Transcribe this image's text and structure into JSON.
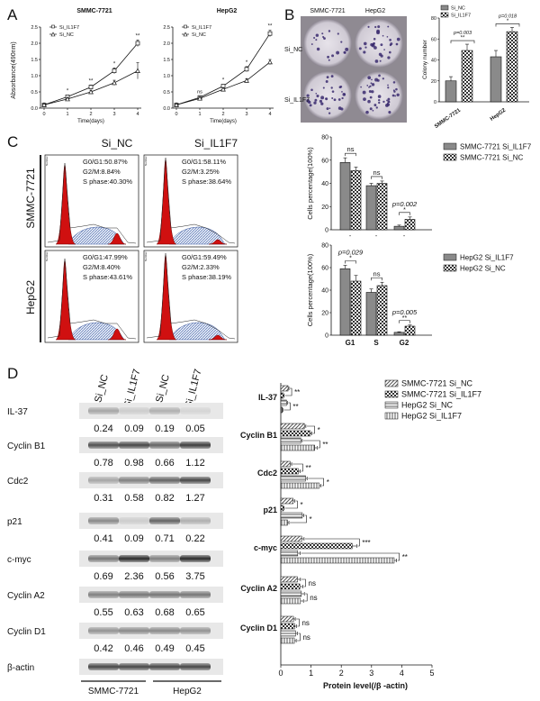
{
  "panel_labels": {
    "a": "A",
    "b": "B",
    "c": "C",
    "d": "D"
  },
  "panel_a": {
    "ylabel": "Absorbance(490nm)",
    "xlabel": "Time(days)",
    "legend": [
      "Si_IL1F7",
      "Si_NC"
    ],
    "ns": "ns",
    "charts": [
      {
        "title": "SMMC-7721"
      },
      {
        "title": "HepG2"
      }
    ],
    "y_ticks": [
      "0.0",
      "0.5",
      "1.0",
      "1.5",
      "2.0",
      "2.5"
    ],
    "x_ticks": [
      "0",
      "1",
      "2",
      "3",
      "4"
    ]
  },
  "panel_b": {
    "image_titles": [
      "SMMC-7721",
      "HepG2"
    ],
    "row_labels": [
      "Si_NC",
      "Si_IL1F7"
    ],
    "legend": [
      "Si_NC",
      "Si_IL1F7"
    ],
    "ylabel": "Colony number",
    "p_values": [
      "p=0.003",
      "p=0.018"
    ],
    "y_ticks": [
      "0",
      "20",
      "40",
      "60",
      "80"
    ]
  },
  "panel_c": {
    "col_titles": [
      "Si_NC",
      "Si_IL1F7"
    ],
    "row_titles": [
      "SMMC-7721",
      "HepG2"
    ],
    "hist_stats": [
      [
        "G0/G1:50.87%",
        "G2/M:8.84%",
        "S phase:40.30%"
      ],
      [
        "G0/G1:58.11%",
        "G2/M:3.25%",
        "S phase:38.64%"
      ],
      [
        "G0/G1:47.99%",
        "G2/M:8.40%",
        "S phase:43.61%"
      ],
      [
        "G0/G1:59.49%",
        "G2/M:2.33%",
        "S phase:38.19%"
      ]
    ],
    "axis_small": "Number",
    "ylabel": "Cells percentage(100%)",
    "legend_top": [
      "SMMC-7721 Si_IL1F7",
      "SMMC-7721 Si_NC"
    ],
    "legend_bottom": [
      "HepG2 Si_IL1F7",
      "HepG2 Si_NC"
    ],
    "p_top": [
      "ns",
      "ns",
      "p=0.002"
    ],
    "p_bottom": [
      "p=0.029",
      "ns",
      "p=0.005"
    ],
    "y_ticks": [
      "0",
      "20",
      "40",
      "60",
      "80"
    ],
    "dash": "-",
    "x_labels": [
      "G1",
      "S",
      "G2"
    ]
  },
  "panel_d": {
    "lane_headers": [
      "Si_NC",
      "Si_IL1F7",
      "Si_NC",
      "Si_IL1F7"
    ],
    "blot_rows": [
      {
        "label": "IL-37",
        "values": [
          "0.24",
          "0.09",
          "0.19",
          "0.05"
        ]
      },
      {
        "label": "Cyclin B1",
        "values": [
          "0.78",
          "0.98",
          "0.66",
          "1.12"
        ]
      },
      {
        "label": "Cdc2",
        "values": [
          "0.31",
          "0.58",
          "0.82",
          "1.27"
        ]
      },
      {
        "label": "p21",
        "values": [
          "0.41",
          "0.09",
          "0.71",
          "0.22"
        ]
      },
      {
        "label": "c-myc",
        "values": [
          "0.69",
          "2.36",
          "0.56",
          "3.75"
        ]
      },
      {
        "label": "Cyclin A2",
        "values": [
          "0.55",
          "0.63",
          "0.68",
          "0.65"
        ]
      },
      {
        "label": "Cyclin D1",
        "values": [
          "0.42",
          "0.46",
          "0.49",
          "0.45"
        ]
      }
    ],
    "actin_label": "β-actin",
    "cell_lines": [
      "SMMC-7721",
      "HepG2"
    ],
    "legend": [
      "SMMC-7721 Si_NC",
      "SMMC-7721 Si_IL1F7",
      "HepG2 Si_NC",
      "HepG2 Si_IL1F7"
    ],
    "xlabel": "Protein level(/β -actin)",
    "x_ticks": [
      "0",
      "1",
      "2",
      "3",
      "4",
      "5"
    ],
    "sig": [
      "**",
      "**",
      "*",
      "**",
      "**",
      "*",
      "*",
      "*",
      "***",
      "**",
      "ns",
      "ns",
      "ns",
      "ns"
    ]
  },
  "chart_data": [
    {
      "type": "line",
      "title": "SMMC-7721",
      "xlabel": "Time(days)",
      "ylabel": "Absorbance(490nm)",
      "x": [
        0,
        1,
        2,
        3,
        4
      ],
      "ylim": [
        0,
        2.5
      ],
      "series": [
        {
          "name": "Si_IL1F7",
          "values": [
            0.1,
            0.35,
            0.65,
            1.15,
            2.0
          ],
          "errors": [
            0.03,
            0.05,
            0.06,
            0.09,
            0.1
          ]
        },
        {
          "name": "Si_NC",
          "values": [
            0.1,
            0.28,
            0.5,
            0.78,
            1.15
          ],
          "errors": [
            0.03,
            0.04,
            0.05,
            0.08,
            0.25
          ]
        }
      ],
      "significance": [
        "",
        "*",
        "**",
        "*",
        "**"
      ]
    },
    {
      "type": "line",
      "title": "HepG2",
      "xlabel": "Time(days)",
      "ylabel": "Absorbance(490nm)",
      "x": [
        0,
        1,
        2,
        3,
        4
      ],
      "ylim": [
        0,
        2.5
      ],
      "series": [
        {
          "name": "Si_IL1F7",
          "values": [
            0.1,
            0.33,
            0.68,
            1.2,
            2.3
          ],
          "errors": [
            0.03,
            0.04,
            0.05,
            0.08,
            0.1
          ]
        },
        {
          "name": "Si_NC",
          "values": [
            0.1,
            0.3,
            0.58,
            0.85,
            1.42
          ],
          "errors": [
            0.03,
            0.04,
            0.05,
            0.06,
            0.08
          ]
        }
      ],
      "significance": [
        "",
        "ns",
        "*",
        "*",
        "**"
      ]
    },
    {
      "type": "bar",
      "ylabel": "Colony number",
      "categories": [
        "SMMC-7721",
        "HepG2"
      ],
      "ylim": [
        0,
        80
      ],
      "series": [
        {
          "name": "Si_NC",
          "values": [
            20,
            43
          ],
          "errors": [
            4,
            6
          ]
        },
        {
          "name": "Si_IL1F7",
          "values": [
            49,
            67
          ],
          "errors": [
            6,
            4
          ]
        }
      ],
      "significance": [
        "p=0.003 **",
        "p=0.018 *"
      ]
    },
    {
      "type": "bar",
      "ylabel": "Cells percentage(100%)",
      "categories": [
        "G1",
        "S",
        "G2"
      ],
      "ylim": [
        0,
        80
      ],
      "series": [
        {
          "name": "SMMC-7721 Si_IL1F7",
          "values": [
            58,
            38,
            3
          ],
          "errors": [
            4,
            2,
            1
          ]
        },
        {
          "name": "SMMC-7721 Si_NC",
          "values": [
            51,
            40,
            9
          ],
          "errors": [
            3,
            2,
            2
          ]
        }
      ],
      "significance": [
        "ns",
        "ns",
        "p=0.002 *"
      ]
    },
    {
      "type": "bar",
      "ylabel": "Cells percentage(100%)",
      "categories": [
        "G1",
        "S",
        "G2"
      ],
      "ylim": [
        0,
        80
      ],
      "series": [
        {
          "name": "HepG2 Si_IL1F7",
          "values": [
            59,
            38,
            2.5
          ],
          "errors": [
            3,
            3,
            0.5
          ]
        },
        {
          "name": "HepG2 Si_NC",
          "values": [
            48,
            44,
            8
          ],
          "errors": [
            5,
            3,
            1
          ]
        }
      ],
      "significance": [
        "p=0.029 *",
        "ns",
        "p=0.005 **"
      ]
    },
    {
      "type": "bar",
      "orientation": "horizontal",
      "xlabel": "Protein level(/β -actin)",
      "categories": [
        "IL-37",
        "Cyclin B1",
        "Cdc2",
        "p21",
        "c-myc",
        "Cyclin A2",
        "Cyclin D1"
      ],
      "xlim": [
        0,
        5
      ],
      "series": [
        {
          "name": "SMMC-7721 Si_NC",
          "values": [
            0.24,
            0.78,
            0.31,
            0.41,
            0.69,
            0.55,
            0.42
          ],
          "errors": [
            0.03,
            0.05,
            0.05,
            0.05,
            0.08,
            0.1,
            0.06
          ]
        },
        {
          "name": "SMMC-7721 Si_IL1F7",
          "values": [
            0.09,
            0.98,
            0.58,
            0.09,
            2.36,
            0.63,
            0.46
          ],
          "errors": [
            0.02,
            0.05,
            0.06,
            0.02,
            0.15,
            0.1,
            0.06
          ]
        },
        {
          "name": "HepG2 Si_NC",
          "values": [
            0.19,
            0.66,
            0.82,
            0.71,
            0.56,
            0.68,
            0.49
          ],
          "errors": [
            0.03,
            0.05,
            0.05,
            0.05,
            0.08,
            0.1,
            0.06
          ]
        },
        {
          "name": "HepG2 Si_IL1F7",
          "values": [
            0.05,
            1.12,
            1.27,
            0.22,
            3.75,
            0.65,
            0.45
          ],
          "errors": [
            0.02,
            0.08,
            0.06,
            0.05,
            0.08,
            0.1,
            0.06
          ]
        }
      ]
    }
  ]
}
